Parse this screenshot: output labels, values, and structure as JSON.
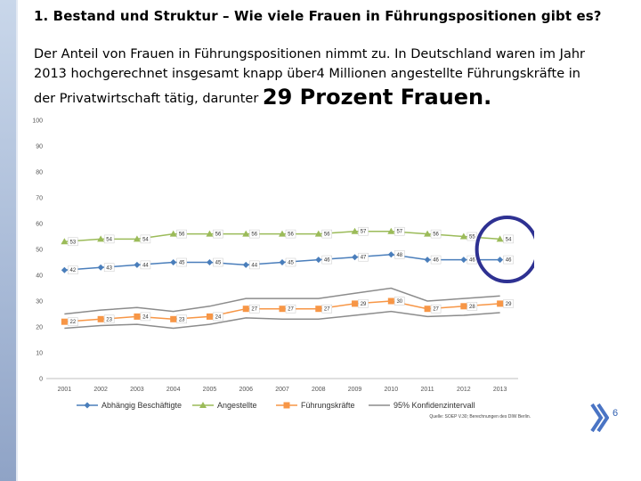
{
  "slide": {
    "heading": "1.  Bestand und Struktur – Wie viele Frauen in Führungspositionen gibt es?",
    "para_line1": "Der Anteil von Frauen in Führungspositionen nimmt zu. In Deutschland waren im Jahr",
    "para_line2": "2013 hochgerechnet insgesamt knapp über4 Millionen angestellte Führungskräfte in",
    "para_line3": "der Privatwirtschaft tätig, darunter ",
    "para_emphasis": "29 Prozent Frauen.",
    "page_number": "6",
    "highlight_color": "#2e3192"
  },
  "chart_data": {
    "type": "line",
    "categories": [
      "2001",
      "2002",
      "2003",
      "2004",
      "2005",
      "2006",
      "2007",
      "2008",
      "2009",
      "2010",
      "2011",
      "2012",
      "2013"
    ],
    "ylim": [
      0,
      100
    ],
    "yticks": [
      0,
      10,
      20,
      30,
      40,
      50,
      60,
      70,
      80,
      90,
      100
    ],
    "grid": false,
    "legend_position": "bottom",
    "series": [
      {
        "name": "Abhängig Beschäftigte",
        "color": "#4a7ebb",
        "marker": "diamond",
        "labels": true,
        "values": [
          42,
          43,
          44,
          45,
          45,
          44,
          45,
          46,
          47,
          48,
          46,
          46,
          46
        ]
      },
      {
        "name": "Angestellte",
        "color": "#9bbb59",
        "marker": "triangle",
        "labels": true,
        "values": [
          53,
          54,
          54,
          56,
          56,
          56,
          56,
          56,
          57,
          57,
          56,
          55,
          54
        ]
      },
      {
        "name": "Führungskräfte",
        "color": "#f79646",
        "marker": "square",
        "labels": true,
        "values": [
          22,
          23,
          24,
          23,
          24,
          27,
          27,
          27,
          29,
          30,
          27,
          28,
          29
        ]
      },
      {
        "name": "95% Konfidenzintervall",
        "color": "#8c8c8c",
        "marker": "none",
        "labels": false,
        "values": [
          25,
          26.5,
          27.5,
          26,
          28,
          31,
          31,
          31,
          33,
          35,
          30,
          31,
          32
        ]
      },
      {
        "name": "",
        "color": "#8c8c8c",
        "marker": "none",
        "labels": false,
        "values": [
          19.5,
          20.5,
          21,
          19.5,
          21,
          23.5,
          23,
          23,
          24.5,
          26,
          24,
          24.5,
          25.5
        ]
      }
    ],
    "source": "Quelle: SOEP V.30; Berechnungen des DIW Berlin.",
    "highlight_circle": {
      "x_category": "2013",
      "value": 50
    }
  }
}
